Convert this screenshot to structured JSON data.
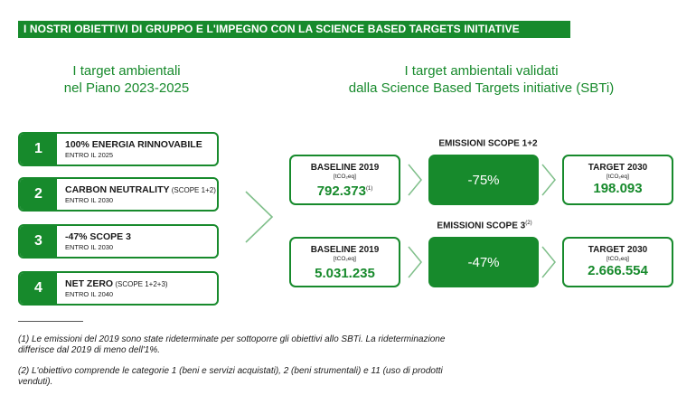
{
  "banner": "I NOSTRI OBIETTIVI DI GRUPPO E L'IMPEGNO CON LA SCIENCE BASED TARGETS INITIATIVE",
  "left_heading": [
    "I target ambientali",
    "nel Piano 2023-2025"
  ],
  "right_heading": [
    "I target ambientali validati",
    "dalla Science Based Targets initiative (SBTi)"
  ],
  "targets": [
    {
      "num": "1",
      "title": "100% ENERGIA RINNOVABILE",
      "suffix": "",
      "sub": "ENTRO IL  2025"
    },
    {
      "num": "2",
      "title": "CARBON NEUTRALITY",
      "suffix": " (SCOPE 1+2)",
      "sub": "ENTRO IL  2030"
    },
    {
      "num": "3",
      "title": "-47% SCOPE 3",
      "suffix": "",
      "sub": "ENTRO IL  2030"
    },
    {
      "num": "4",
      "title": "NET ZERO",
      "suffix": " (SCOPE 1+2+3)",
      "sub": "ENTRO IL  2040"
    }
  ],
  "scope12": {
    "label": "EMISSIONI SCOPE 1+2",
    "label_sup": "",
    "baseline_title": "BASELINE 2019",
    "baseline_unit": "[tCO₂eq]",
    "baseline_value": "792.373",
    "baseline_sup": "(1)",
    "reduction": "-75%",
    "target_title": "TARGET 2030",
    "target_unit": "[tCO₂eq]",
    "target_value": "198.093"
  },
  "scope3": {
    "label": "EMISSIONI SCOPE 3",
    "label_sup": "(2)",
    "baseline_title": "BASELINE 2019",
    "baseline_unit": "[tCO₂eq]",
    "baseline_value": "5.031.235",
    "baseline_sup": "",
    "reduction": "-47%",
    "target_title": "TARGET 2030",
    "target_unit": "[tCO₂eq]",
    "target_value": "2.666.554"
  },
  "notes": [
    "(1) Le emissioni del 2019 sono state rideterminate per sottoporre gli obiettivi allo SBTi. La rideterminazione differisce dal 2019 di meno dell'1%.",
    "(2) L'obiettivo comprende le categorie 1 (beni e servizi acquistati), 2 (beni strumentali) e 11 (uso di prodotti venduti)."
  ],
  "colors": {
    "brand_green": "#178a2c",
    "chevron_stroke": "#7fbf8a"
  },
  "icons": {
    "flow_arrow": "chevron-right-outline-icon"
  }
}
